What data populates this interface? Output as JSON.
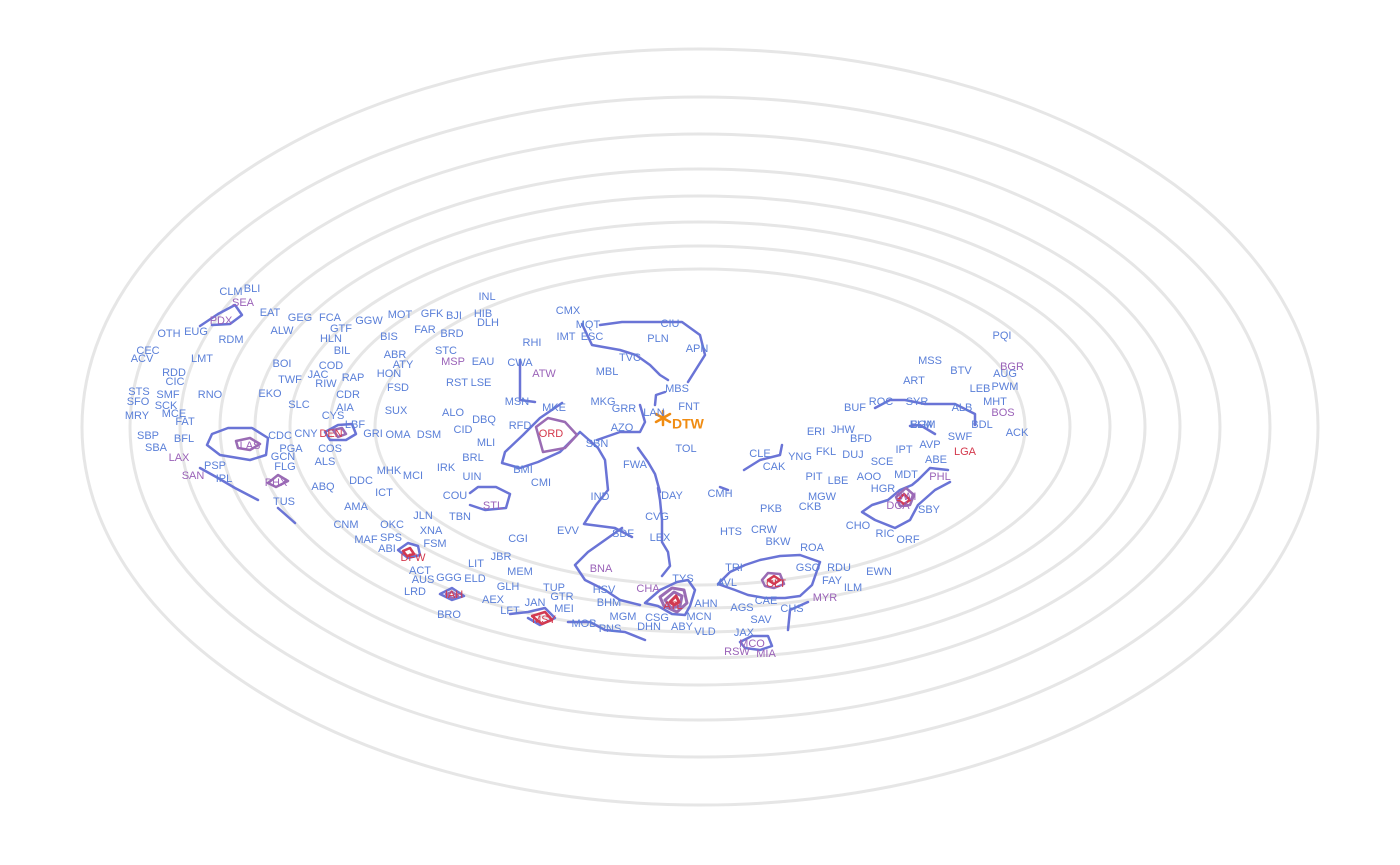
{
  "map": {
    "center_airport": "DTW",
    "colors": {
      "ring": "#e6e6e6",
      "contour_low": "#6a74d6",
      "contour_mid": "#9a6cb4",
      "contour_high": "#d23a52",
      "label_low": "#5a7fd8",
      "label_mid": "#9a62b8",
      "label_high": "#d4384c",
      "hub": "#f08c12"
    },
    "airports": [
      [
        "CLM",
        "l"
      ],
      [
        "BLI",
        "l"
      ],
      [
        "SEA",
        "m"
      ],
      [
        "PDX",
        "m"
      ],
      [
        "EAT",
        "l"
      ],
      [
        "GEG",
        "l"
      ],
      [
        "FCA",
        "l"
      ],
      [
        "GGW",
        "l"
      ],
      [
        "MOT",
        "l"
      ],
      [
        "GFK",
        "l"
      ],
      [
        "BJI",
        "l"
      ],
      [
        "INL",
        "l"
      ],
      [
        "HIB",
        "l"
      ],
      [
        "DLH",
        "l"
      ],
      [
        "OTH",
        "l"
      ],
      [
        "EUG",
        "l"
      ],
      [
        "ALW",
        "l"
      ],
      [
        "GTF",
        "l"
      ],
      [
        "HLN",
        "l"
      ],
      [
        "BIS",
        "l"
      ],
      [
        "FAR",
        "l"
      ],
      [
        "BRD",
        "l"
      ],
      [
        "CEC",
        "l"
      ],
      [
        "ACV",
        "l"
      ],
      [
        "RDM",
        "l"
      ],
      [
        "BIL",
        "l"
      ],
      [
        "ABR",
        "l"
      ],
      [
        "STC",
        "l"
      ],
      [
        "LMT",
        "l"
      ],
      [
        "BOI",
        "l"
      ],
      [
        "COD",
        "l"
      ],
      [
        "ATY",
        "l"
      ],
      [
        "MSP",
        "m"
      ],
      [
        "EAU",
        "l"
      ],
      [
        "RDD",
        "l"
      ],
      [
        "CIC",
        "l"
      ],
      [
        "TWF",
        "l"
      ],
      [
        "JAC",
        "l"
      ],
      [
        "RIW",
        "l"
      ],
      [
        "RAP",
        "l"
      ],
      [
        "HON",
        "l"
      ],
      [
        "RST",
        "l"
      ],
      [
        "LSE",
        "l"
      ],
      [
        "STS",
        "l"
      ],
      [
        "SMF",
        "l"
      ],
      [
        "RNO",
        "l"
      ],
      [
        "EKO",
        "l"
      ],
      [
        "CDR",
        "l"
      ],
      [
        "FSD",
        "l"
      ],
      [
        "SFO",
        "l"
      ],
      [
        "SCK",
        "l"
      ],
      [
        "SLC",
        "l"
      ],
      [
        "AIA",
        "l"
      ],
      [
        "SUX",
        "l"
      ],
      [
        "ALO",
        "l"
      ],
      [
        "DBQ",
        "l"
      ],
      [
        "MRY",
        "l"
      ],
      [
        "MCE",
        "l"
      ],
      [
        "FAT",
        "l"
      ],
      [
        "CYS",
        "l"
      ],
      [
        "LBF",
        "l"
      ],
      [
        "SBP",
        "l"
      ],
      [
        "BFL",
        "l"
      ],
      [
        "CDC",
        "l"
      ],
      [
        "CNY",
        "l"
      ],
      [
        "DEN",
        "h"
      ],
      [
        "GRI",
        "l"
      ],
      [
        "OMA",
        "l"
      ],
      [
        "DSM",
        "l"
      ],
      [
        "CID",
        "l"
      ],
      [
        "SBA",
        "l"
      ],
      [
        "LAS",
        "m"
      ],
      [
        "PGA",
        "l"
      ],
      [
        "COS",
        "l"
      ],
      [
        "MLI",
        "l"
      ],
      [
        "LAX",
        "m"
      ],
      [
        "GCN",
        "l"
      ],
      [
        "ALS",
        "l"
      ],
      [
        "BRL",
        "l"
      ],
      [
        "PSP",
        "l"
      ],
      [
        "FLG",
        "l"
      ],
      [
        "MHK",
        "l"
      ],
      [
        "MCI",
        "l"
      ],
      [
        "IRK",
        "l"
      ],
      [
        "UIN",
        "l"
      ],
      [
        "SAN",
        "m"
      ],
      [
        "IPL",
        "l"
      ],
      [
        "PHX",
        "m"
      ],
      [
        "DDC",
        "l"
      ],
      [
        "ABQ",
        "l"
      ],
      [
        "ICT",
        "l"
      ],
      [
        "COU",
        "l"
      ],
      [
        "STL",
        "m"
      ],
      [
        "TUS",
        "l"
      ],
      [
        "AMA",
        "l"
      ],
      [
        "TBN",
        "l"
      ],
      [
        "JLN",
        "l"
      ],
      [
        "CNM",
        "l"
      ],
      [
        "OKC",
        "l"
      ],
      [
        "XNA",
        "l"
      ],
      [
        "MAF",
        "l"
      ],
      [
        "SPS",
        "l"
      ],
      [
        "FSM",
        "l"
      ],
      [
        "ABI",
        "l"
      ],
      [
        "DFW",
        "h"
      ],
      [
        "CGI",
        "l"
      ],
      [
        "JBR",
        "l"
      ],
      [
        "ACT",
        "l"
      ],
      [
        "LIT",
        "l"
      ],
      [
        "MEM",
        "l"
      ],
      [
        "AUS",
        "l"
      ],
      [
        "GGG",
        "l"
      ],
      [
        "ELD",
        "l"
      ],
      [
        "GLH",
        "l"
      ],
      [
        "LRD",
        "l"
      ],
      [
        "IAH",
        "h"
      ],
      [
        "TUP",
        "l"
      ],
      [
        "AEX",
        "l"
      ],
      [
        "GTR",
        "l"
      ],
      [
        "JAN",
        "l"
      ],
      [
        "BRO",
        "l"
      ],
      [
        "LFT",
        "l"
      ],
      [
        "MEI",
        "l"
      ],
      [
        "MSY",
        "h"
      ],
      [
        "CMX",
        "l"
      ],
      [
        "MQT",
        "l"
      ],
      [
        "CIU",
        "l"
      ],
      [
        "ESC",
        "l"
      ],
      [
        "IMT",
        "l"
      ],
      [
        "PLN",
        "l"
      ],
      [
        "APN",
        "l"
      ],
      [
        "RHI",
        "l"
      ],
      [
        "TVC",
        "l"
      ],
      [
        "CWA",
        "l"
      ],
      [
        "ATW",
        "m"
      ],
      [
        "MBL",
        "l"
      ],
      [
        "MBS",
        "l"
      ],
      [
        "MSN",
        "l"
      ],
      [
        "MKE",
        "l"
      ],
      [
        "MKG",
        "l"
      ],
      [
        "GRR",
        "l"
      ],
      [
        "LAN",
        "l"
      ],
      [
        "FNT",
        "l"
      ],
      [
        "RFD",
        "l"
      ],
      [
        "ORD",
        "h"
      ],
      [
        "AZO",
        "l"
      ],
      [
        "SBN",
        "l"
      ],
      [
        "TOL",
        "l"
      ],
      [
        "BMI",
        "l"
      ],
      [
        "FWA",
        "l"
      ],
      [
        "CMI",
        "l"
      ],
      [
        "IND",
        "l"
      ],
      [
        "DAY",
        "l"
      ],
      [
        "CVG",
        "l"
      ],
      [
        "EVV",
        "l"
      ],
      [
        "SDF",
        "l"
      ],
      [
        "LEX",
        "l"
      ],
      [
        "BNA",
        "m"
      ],
      [
        "HSV",
        "l"
      ],
      [
        "CHA",
        "m"
      ],
      [
        "TYS",
        "l"
      ],
      [
        "BHM",
        "l"
      ],
      [
        "ATL",
        "h"
      ],
      [
        "AHN",
        "l"
      ],
      [
        "CSG",
        "l"
      ],
      [
        "MCN",
        "l"
      ],
      [
        "MGM",
        "l"
      ],
      [
        "DHN",
        "l"
      ],
      [
        "ABY",
        "l"
      ],
      [
        "MOB",
        "l"
      ],
      [
        "PNS",
        "l"
      ],
      [
        "VLD",
        "l"
      ],
      [
        "CLE",
        "l"
      ],
      [
        "CAK",
        "l"
      ],
      [
        "ERI",
        "l"
      ],
      [
        "JHW",
        "l"
      ],
      [
        "BFD",
        "l"
      ],
      [
        "YNG",
        "l"
      ],
      [
        "FKL",
        "l"
      ],
      [
        "DUJ",
        "l"
      ],
      [
        "CMH",
        "l"
      ],
      [
        "PIT",
        "l"
      ],
      [
        "LBE",
        "l"
      ],
      [
        "AOO",
        "l"
      ],
      [
        "PKB",
        "l"
      ],
      [
        "CKB",
        "l"
      ],
      [
        "MGW",
        "l"
      ],
      [
        "CRW",
        "l"
      ],
      [
        "HTS",
        "l"
      ],
      [
        "BKW",
        "l"
      ],
      [
        "ROA",
        "l"
      ],
      [
        "TRI",
        "l"
      ],
      [
        "AVL",
        "l"
      ],
      [
        "GSO",
        "l"
      ],
      [
        "RDU",
        "l"
      ],
      [
        "CLT",
        "h"
      ],
      [
        "FAY",
        "l"
      ],
      [
        "ILM",
        "l"
      ],
      [
        "CAE",
        "l"
      ],
      [
        "AGS",
        "l"
      ],
      [
        "CHS",
        "l"
      ],
      [
        "MYR",
        "m"
      ],
      [
        "SAV",
        "l"
      ],
      [
        "JAX",
        "l"
      ],
      [
        "MCO",
        "m"
      ],
      [
        "RSW",
        "m"
      ],
      [
        "MIA",
        "m"
      ],
      [
        "EWN",
        "l"
      ],
      [
        "BUF",
        "l"
      ],
      [
        "ROC",
        "l"
      ],
      [
        "SYR",
        "l"
      ],
      [
        "ALB",
        "l"
      ],
      [
        "BGM",
        "l"
      ],
      [
        "SWF",
        "l"
      ],
      [
        "BDL",
        "l"
      ],
      [
        "ELM",
        "l"
      ],
      [
        "AVP",
        "l"
      ],
      [
        "IPT",
        "l"
      ],
      [
        "SCE",
        "l"
      ],
      [
        "ABE",
        "l"
      ],
      [
        "LGA",
        "h"
      ],
      [
        "MDT",
        "l"
      ],
      [
        "PHL",
        "m"
      ],
      [
        "HGR",
        "l"
      ],
      [
        "BWI",
        "m"
      ],
      [
        "DCA",
        "m"
      ],
      [
        "SBY",
        "l"
      ],
      [
        "CHO",
        "l"
      ],
      [
        "RIC",
        "l"
      ],
      [
        "ORF",
        "l"
      ],
      [
        "PQI",
        "l"
      ],
      [
        "MSS",
        "l"
      ],
      [
        "BTV",
        "l"
      ],
      [
        "BGR",
        "m"
      ],
      [
        "AUG",
        "l"
      ],
      [
        "ART",
        "l"
      ],
      [
        "LEB",
        "l"
      ],
      [
        "PWM",
        "l"
      ],
      [
        "MHT",
        "l"
      ],
      [
        "BOS",
        "m"
      ],
      [
        "ACK",
        "l"
      ]
    ]
  }
}
